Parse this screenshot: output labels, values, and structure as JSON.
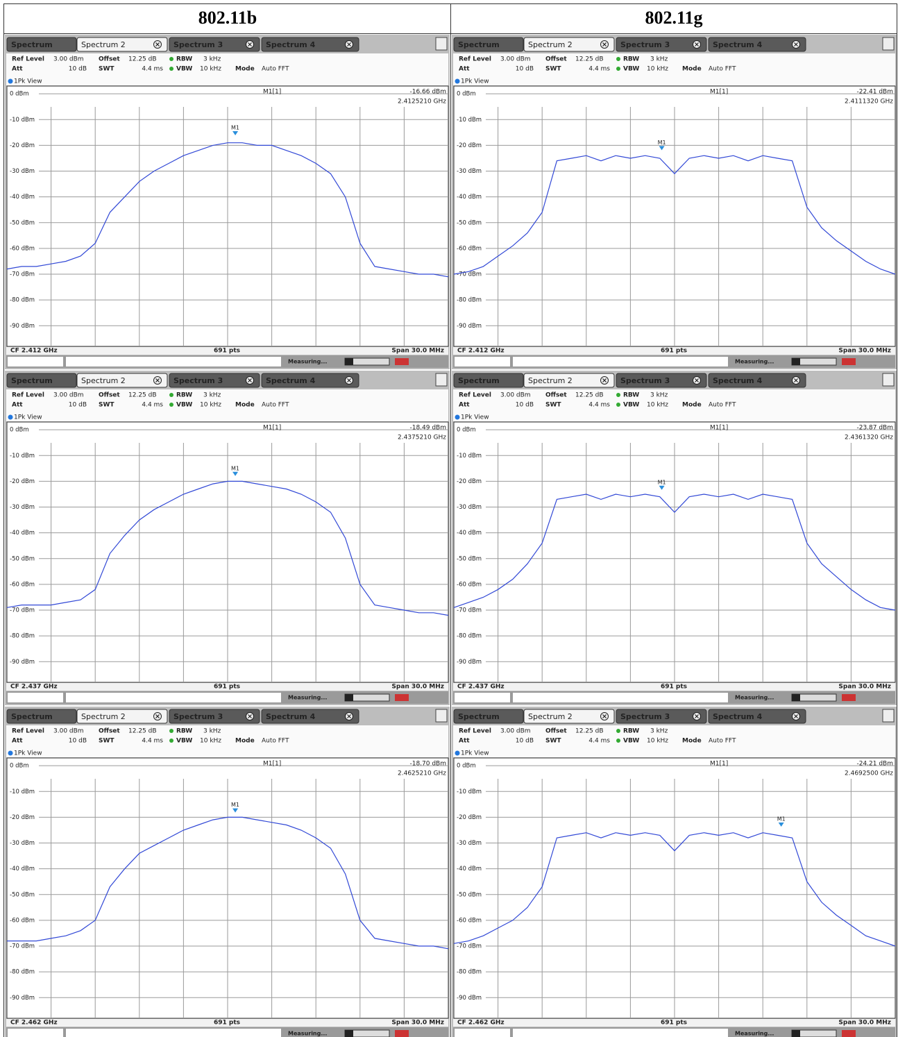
{
  "table": {
    "headers": [
      "802.11b",
      "802.11g"
    ]
  },
  "instrument": {
    "tabs": [
      "Spectrum",
      "Spectrum 2",
      "Spectrum 3",
      "Spectrum 4"
    ],
    "ref_level_label": "Ref Level",
    "ref_level": "3.00 dBm",
    "offset_label": "Offset",
    "offset": "12.25 dB",
    "rbw_label": "RBW",
    "rbw": "3 kHz",
    "att_label": "Att",
    "att": "10 dB",
    "swt_label": "SWT",
    "swt": "4.4 ms",
    "vbw_label": "VBW",
    "vbw": "10 kHz",
    "mode_label": "Mode",
    "mode": "Auto FFT",
    "view": "1Pk View",
    "marker_name": "M1[1]",
    "marker_tag": "M1",
    "points": "691 pts",
    "span": "Span 30.0 MHz",
    "status": "Measuring..."
  },
  "chart_data": [
    {
      "type": "line",
      "cf_label": "CF 2.412 GHz",
      "xlim": [
        2.397,
        2.427
      ],
      "ylim": [
        -98,
        3
      ],
      "yticks": [
        {
          "value": 0,
          "label": "0 dBm"
        },
        {
          "value": -10,
          "label": "-10 dBm"
        },
        {
          "value": -20,
          "label": "-20 dBm"
        },
        {
          "value": -30,
          "label": "-30 dBm"
        },
        {
          "value": -40,
          "label": "-40 dBm"
        },
        {
          "value": -50,
          "label": "-50 dBm"
        },
        {
          "value": -60,
          "label": "-60 dBm"
        },
        {
          "value": -70,
          "label": "-70 dBm"
        },
        {
          "value": -80,
          "label": "-80 dBm"
        },
        {
          "value": -90,
          "label": "-90 dBm"
        }
      ],
      "series": [
        {
          "color": "#3148d6",
          "x": [
            2.397,
            2.398,
            2.399,
            2.4,
            2.401,
            2.402,
            2.403,
            2.404,
            2.405,
            2.406,
            2.407,
            2.408,
            2.409,
            2.41,
            2.411,
            2.412,
            2.413,
            2.414,
            2.415,
            2.416,
            2.417,
            2.418,
            2.419,
            2.42,
            2.421,
            2.422,
            2.423,
            2.424,
            2.425,
            2.426,
            2.427
          ],
          "values": [
            -68,
            -67,
            -67,
            -66,
            -65,
            -63,
            -58,
            -46,
            -40,
            -34,
            -30,
            -27,
            -24,
            -22,
            -20,
            -19,
            -19,
            -20,
            -20,
            -22,
            -24,
            -27,
            -31,
            -40,
            -58,
            -67,
            -68,
            -69,
            -70,
            -70,
            -71
          ]
        }
      ],
      "marker": {
        "x": 2.412521,
        "x_label": "2.4125210 GHz",
        "value": -16.66,
        "value_label": "-16.66 dBm"
      }
    },
    {
      "type": "line",
      "cf_label": "CF 2.412 GHz",
      "xlim": [
        2.397,
        2.427
      ],
      "ylim": [
        -98,
        3
      ],
      "yticks": [
        {
          "value": 0,
          "label": "0 dBm"
        },
        {
          "value": -10,
          "label": "-10 dBm"
        },
        {
          "value": -20,
          "label": "-20 dBm"
        },
        {
          "value": -30,
          "label": "-30 dBm"
        },
        {
          "value": -40,
          "label": "-40 dBm"
        },
        {
          "value": -50,
          "label": "-50 dBm"
        },
        {
          "value": -60,
          "label": "-60 dBm"
        },
        {
          "value": -70,
          "label": "-70 dBm"
        },
        {
          "value": -80,
          "label": "-80 dBm"
        },
        {
          "value": -90,
          "label": "-90 dBm"
        }
      ],
      "series": [
        {
          "color": "#3148d6",
          "x": [
            2.397,
            2.398,
            2.399,
            2.4,
            2.401,
            2.402,
            2.403,
            2.404,
            2.405,
            2.406,
            2.407,
            2.408,
            2.409,
            2.41,
            2.411,
            2.412,
            2.413,
            2.414,
            2.415,
            2.416,
            2.417,
            2.418,
            2.419,
            2.42,
            2.421,
            2.422,
            2.423,
            2.424,
            2.425,
            2.426,
            2.427
          ],
          "values": [
            -70,
            -69,
            -67,
            -63,
            -59,
            -54,
            -46,
            -26,
            -25,
            -24,
            -26,
            -24,
            -25,
            -24,
            -25,
            -31,
            -25,
            -24,
            -25,
            -24,
            -26,
            -24,
            -25,
            -26,
            -44,
            -52,
            -57,
            -61,
            -65,
            -68,
            -70
          ]
        }
      ],
      "marker": {
        "x": 2.411132,
        "x_label": "2.4111320 GHz",
        "value": -22.41,
        "value_label": "-22.41 dBm"
      }
    },
    {
      "type": "line",
      "cf_label": "CF 2.437 GHz",
      "xlim": [
        2.422,
        2.452
      ],
      "ylim": [
        -98,
        3
      ],
      "yticks": [
        {
          "value": 0,
          "label": "0 dBm"
        },
        {
          "value": -10,
          "label": "-10 dBm"
        },
        {
          "value": -20,
          "label": "-20 dBm"
        },
        {
          "value": -30,
          "label": "-30 dBm"
        },
        {
          "value": -40,
          "label": "-40 dBm"
        },
        {
          "value": -50,
          "label": "-50 dBm"
        },
        {
          "value": -60,
          "label": "-60 dBm"
        },
        {
          "value": -70,
          "label": "-70 dBm"
        },
        {
          "value": -80,
          "label": "-80 dBm"
        },
        {
          "value": -90,
          "label": "-90 dBm"
        }
      ],
      "series": [
        {
          "color": "#3148d6",
          "x": [
            2.422,
            2.423,
            2.424,
            2.425,
            2.426,
            2.427,
            2.428,
            2.429,
            2.43,
            2.431,
            2.432,
            2.433,
            2.434,
            2.435,
            2.436,
            2.437,
            2.438,
            2.439,
            2.44,
            2.441,
            2.442,
            2.443,
            2.444,
            2.445,
            2.446,
            2.447,
            2.448,
            2.449,
            2.45,
            2.451,
            2.452
          ],
          "values": [
            -69,
            -68,
            -68,
            -68,
            -67,
            -66,
            -62,
            -48,
            -41,
            -35,
            -31,
            -28,
            -25,
            -23,
            -21,
            -20,
            -20,
            -21,
            -22,
            -23,
            -25,
            -28,
            -32,
            -42,
            -60,
            -68,
            -69,
            -70,
            -71,
            -71,
            -72
          ]
        }
      ],
      "marker": {
        "x": 2.437521,
        "x_label": "2.4375210 GHz",
        "value": -18.49,
        "value_label": "-18.49 dBm"
      }
    },
    {
      "type": "line",
      "cf_label": "CF 2.437 GHz",
      "xlim": [
        2.422,
        2.452
      ],
      "ylim": [
        -98,
        3
      ],
      "yticks": [
        {
          "value": 0,
          "label": "0 dBm"
        },
        {
          "value": -10,
          "label": "-10 dBm"
        },
        {
          "value": -20,
          "label": "-20 dBm"
        },
        {
          "value": -30,
          "label": "-30 dBm"
        },
        {
          "value": -40,
          "label": "-40 dBm"
        },
        {
          "value": -50,
          "label": "-50 dBm"
        },
        {
          "value": -60,
          "label": "-60 dBm"
        },
        {
          "value": -70,
          "label": "-70 dBm"
        },
        {
          "value": -80,
          "label": "-80 dBm"
        },
        {
          "value": -90,
          "label": "-90 dBm"
        }
      ],
      "series": [
        {
          "color": "#3148d6",
          "x": [
            2.422,
            2.423,
            2.424,
            2.425,
            2.426,
            2.427,
            2.428,
            2.429,
            2.43,
            2.431,
            2.432,
            2.433,
            2.434,
            2.435,
            2.436,
            2.437,
            2.438,
            2.439,
            2.44,
            2.441,
            2.442,
            2.443,
            2.444,
            2.445,
            2.446,
            2.447,
            2.448,
            2.449,
            2.45,
            2.451,
            2.452
          ],
          "values": [
            -69,
            -67,
            -65,
            -62,
            -58,
            -52,
            -44,
            -27,
            -26,
            -25,
            -27,
            -25,
            -26,
            -25,
            -26,
            -32,
            -26,
            -25,
            -26,
            -25,
            -27,
            -25,
            -26,
            -27,
            -44,
            -52,
            -57,
            -62,
            -66,
            -69,
            -70
          ]
        }
      ],
      "marker": {
        "x": 2.436132,
        "x_label": "2.4361320 GHz",
        "value": -23.87,
        "value_label": "-23.87 dBm"
      }
    },
    {
      "type": "line",
      "cf_label": "CF 2.462 GHz",
      "xlim": [
        2.447,
        2.477
      ],
      "ylim": [
        -98,
        3
      ],
      "yticks": [
        {
          "value": 0,
          "label": "0 dBm"
        },
        {
          "value": -10,
          "label": "-10 dBm"
        },
        {
          "value": -20,
          "label": "-20 dBm"
        },
        {
          "value": -30,
          "label": "-30 dBm"
        },
        {
          "value": -40,
          "label": "-40 dBm"
        },
        {
          "value": -50,
          "label": "-50 dBm"
        },
        {
          "value": -60,
          "label": "-60 dBm"
        },
        {
          "value": -70,
          "label": "-70 dBm"
        },
        {
          "value": -80,
          "label": "-80 dBm"
        },
        {
          "value": -90,
          "label": "-90 dBm"
        }
      ],
      "series": [
        {
          "color": "#3148d6",
          "x": [
            2.447,
            2.448,
            2.449,
            2.45,
            2.451,
            2.452,
            2.453,
            2.454,
            2.455,
            2.456,
            2.457,
            2.458,
            2.459,
            2.46,
            2.461,
            2.462,
            2.463,
            2.464,
            2.465,
            2.466,
            2.467,
            2.468,
            2.469,
            2.47,
            2.471,
            2.472,
            2.473,
            2.474,
            2.475,
            2.476,
            2.477
          ],
          "values": [
            -68,
            -68,
            -68,
            -67,
            -66,
            -64,
            -60,
            -47,
            -40,
            -34,
            -31,
            -28,
            -25,
            -23,
            -21,
            -20,
            -20,
            -21,
            -22,
            -23,
            -25,
            -28,
            -32,
            -42,
            -60,
            -67,
            -68,
            -69,
            -70,
            -70,
            -71
          ]
        }
      ],
      "marker": {
        "x": 2.462521,
        "x_label": "2.4625210 GHz",
        "value": -18.7,
        "value_label": "-18.70 dBm"
      }
    },
    {
      "type": "line",
      "cf_label": "CF 2.462 GHz",
      "xlim": [
        2.447,
        2.477
      ],
      "ylim": [
        -98,
        3
      ],
      "yticks": [
        {
          "value": 0,
          "label": "0 dBm"
        },
        {
          "value": -10,
          "label": "-10 dBm"
        },
        {
          "value": -20,
          "label": "-20 dBm"
        },
        {
          "value": -30,
          "label": "-30 dBm"
        },
        {
          "value": -40,
          "label": "-40 dBm"
        },
        {
          "value": -50,
          "label": "-50 dBm"
        },
        {
          "value": -60,
          "label": "-60 dBm"
        },
        {
          "value": -70,
          "label": "-70 dBm"
        },
        {
          "value": -80,
          "label": "-80 dBm"
        },
        {
          "value": -90,
          "label": "-90 dBm"
        }
      ],
      "series": [
        {
          "color": "#3148d6",
          "x": [
            2.447,
            2.448,
            2.449,
            2.45,
            2.451,
            2.452,
            2.453,
            2.454,
            2.455,
            2.456,
            2.457,
            2.458,
            2.459,
            2.46,
            2.461,
            2.462,
            2.463,
            2.464,
            2.465,
            2.466,
            2.467,
            2.468,
            2.469,
            2.47,
            2.471,
            2.472,
            2.473,
            2.474,
            2.475,
            2.476,
            2.477
          ],
          "values": [
            -69,
            -68,
            -66,
            -63,
            -60,
            -55,
            -47,
            -28,
            -27,
            -26,
            -28,
            -26,
            -27,
            -26,
            -27,
            -33,
            -27,
            -26,
            -27,
            -26,
            -28,
            -26,
            -27,
            -28,
            -45,
            -53,
            -58,
            -62,
            -66,
            -68,
            -70
          ]
        }
      ],
      "marker": {
        "x": 2.46925,
        "x_label": "2.4692500 GHz",
        "value": -24.21,
        "value_label": "-24.21 dBm"
      }
    }
  ]
}
